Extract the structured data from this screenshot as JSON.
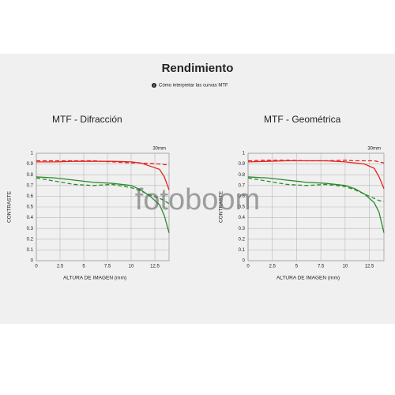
{
  "header": {
    "title": "Rendimiento",
    "subtitle": "Cómo interpretar las curvas MTF"
  },
  "watermark": "fotoboom",
  "chart_data": [
    {
      "type": "line",
      "title": "MTF - Difracción",
      "annotation": "30mm",
      "x_label": "ALTURA DE IMAGEN (mm)",
      "y_label": "CONTRASTE",
      "x": [
        0,
        2,
        4,
        6,
        8,
        10,
        11,
        12,
        13,
        13.5,
        14
      ],
      "xlim": [
        0,
        14
      ],
      "xticks": [
        0,
        2.5,
        5,
        7.5,
        10,
        12.5
      ],
      "ylim": [
        0,
        1
      ],
      "yticks": [
        0,
        0.1,
        0.2,
        0.3,
        0.4,
        0.5,
        0.6,
        0.7,
        0.8,
        0.9,
        1
      ],
      "grid": true,
      "series": [
        {
          "color": "#e8221b",
          "dashed": false,
          "values": [
            0.92,
            0.92,
            0.925,
            0.925,
            0.925,
            0.92,
            0.91,
            0.88,
            0.85,
            0.78,
            0.66
          ]
        },
        {
          "color": "#e8221b",
          "dashed": true,
          "values": [
            0.93,
            0.93,
            0.93,
            0.93,
            0.92,
            0.91,
            0.91,
            0.905,
            0.9,
            0.895,
            0.89
          ]
        },
        {
          "color": "#2a8a2a",
          "dashed": false,
          "values": [
            0.78,
            0.77,
            0.75,
            0.73,
            0.72,
            0.7,
            0.66,
            0.6,
            0.52,
            0.42,
            0.26
          ]
        },
        {
          "color": "#2a8a2a",
          "dashed": true,
          "values": [
            0.77,
            0.74,
            0.71,
            0.7,
            0.71,
            0.68,
            0.65,
            0.61,
            0.58,
            0.56,
            0.53
          ]
        }
      ]
    },
    {
      "type": "line",
      "title": "MTF - Geométrica",
      "annotation": "30mm",
      "x_label": "ALTURA DE IMAGEN (mm)",
      "y_label": "CONTRASTE",
      "x": [
        0,
        2,
        4,
        6,
        8,
        10,
        11,
        12,
        13,
        13.5,
        14
      ],
      "xlim": [
        0,
        14
      ],
      "xticks": [
        0,
        2.5,
        5,
        7.5,
        10,
        12.5
      ],
      "ylim": [
        0,
        1
      ],
      "yticks": [
        0,
        0.1,
        0.2,
        0.3,
        0.4,
        0.5,
        0.6,
        0.7,
        0.8,
        0.9,
        1
      ],
      "grid": true,
      "series": [
        {
          "color": "#e8221b",
          "dashed": false,
          "values": [
            0.92,
            0.925,
            0.93,
            0.93,
            0.93,
            0.92,
            0.91,
            0.9,
            0.86,
            0.78,
            0.67
          ]
        },
        {
          "color": "#e8221b",
          "dashed": true,
          "values": [
            0.93,
            0.935,
            0.935,
            0.93,
            0.93,
            0.935,
            0.93,
            0.93,
            0.93,
            0.92,
            0.91
          ]
        },
        {
          "color": "#2a8a2a",
          "dashed": false,
          "values": [
            0.78,
            0.77,
            0.75,
            0.73,
            0.72,
            0.7,
            0.67,
            0.62,
            0.54,
            0.45,
            0.26
          ]
        },
        {
          "color": "#2a8a2a",
          "dashed": true,
          "values": [
            0.77,
            0.74,
            0.71,
            0.7,
            0.71,
            0.69,
            0.66,
            0.62,
            0.58,
            0.56,
            0.55
          ]
        }
      ]
    }
  ]
}
